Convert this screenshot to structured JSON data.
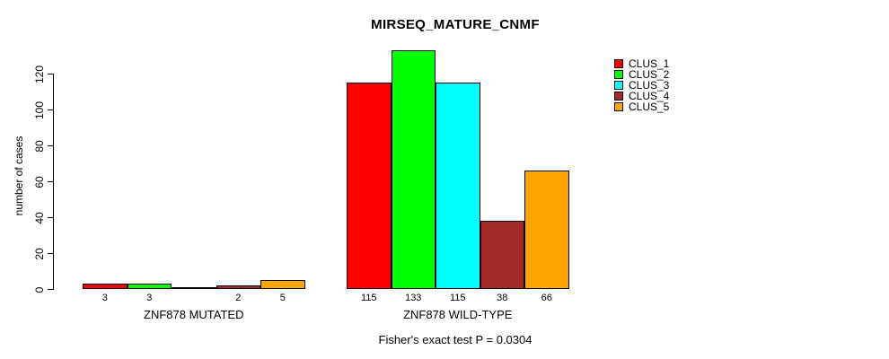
{
  "chart_data": {
    "type": "bar",
    "title": "MIRSEQ_MATURE_CNMF",
    "ylabel": "number of cases",
    "xlabel": "",
    "categories": [
      "ZNF878 MUTATED",
      "ZNF878 WILD-TYPE"
    ],
    "series": [
      {
        "name": "CLUS_1",
        "color": "#ff0000",
        "values": [
          3,
          115
        ]
      },
      {
        "name": "CLUS_2",
        "color": "#00ff00",
        "values": [
          3,
          133
        ]
      },
      {
        "name": "CLUS_3",
        "color": "#00ffff",
        "values": [
          0,
          115
        ]
      },
      {
        "name": "CLUS_4",
        "color": "#a52a2a",
        "values": [
          2,
          38
        ]
      },
      {
        "name": "CLUS_5",
        "color": "#ffa500",
        "values": [
          5,
          66
        ]
      }
    ],
    "bar_value_labels_shown": true,
    "zero_value_labels_hidden": true,
    "yticks": [
      0,
      20,
      40,
      60,
      80,
      100,
      120
    ],
    "ylim": [
      0,
      140
    ],
    "grid": false,
    "legend_position": "top-right",
    "legend_entries": [
      "CLUS_1",
      "CLUS_2",
      "CLUS_3",
      "CLUS_4",
      "CLUS_5"
    ],
    "annotation": "Fisher's exact test P = 0.0304"
  }
}
